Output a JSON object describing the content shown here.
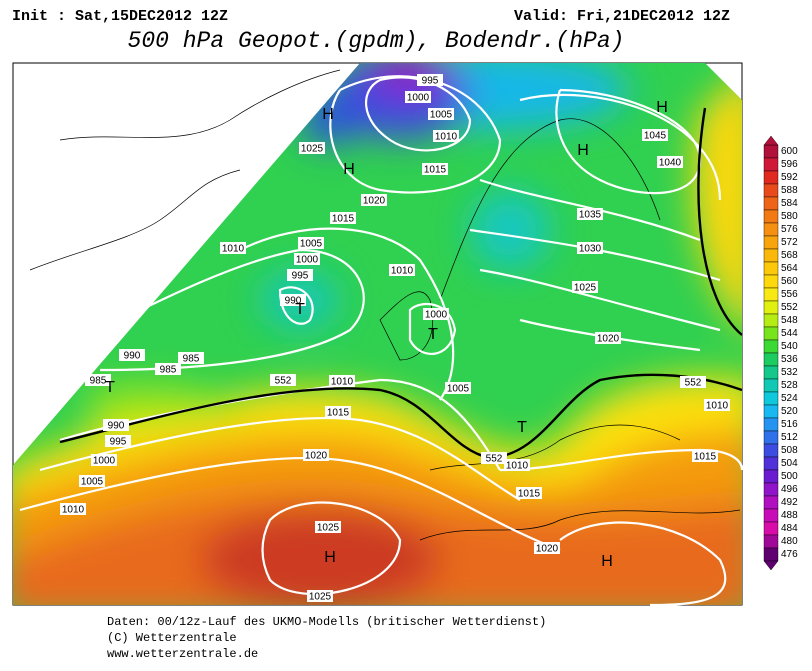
{
  "header": {
    "init": "Init : Sat,15DEC2012 12Z",
    "valid": "Valid: Fri,21DEC2012 12Z",
    "title": "500 hPa Geopot.(gpdm), Bodendr.(hPa)"
  },
  "map": {
    "isobar_labels": [
      "995",
      "1000",
      "1005",
      "1010",
      "1015",
      "1020",
      "1015",
      "1025",
      "1010",
      "1005",
      "1000",
      "995",
      "990",
      "1010",
      "1000",
      "1005",
      "1010",
      "990",
      "985",
      "985",
      "985",
      "990",
      "995",
      "1000",
      "1005",
      "1010",
      "1015",
      "1020",
      "1025",
      "1025",
      "1035",
      "1030",
      "1025",
      "1020",
      "1045",
      "1040",
      "1010",
      "1015",
      "1020",
      "1015",
      "1010",
      "552",
      "552",
      "552"
    ],
    "pressure_centers": [
      "H",
      "H",
      "H",
      "H",
      "T",
      "T",
      "T",
      "T",
      "H",
      "H"
    ]
  },
  "legend": {
    "values": [
      600,
      596,
      592,
      588,
      584,
      580,
      576,
      572,
      568,
      564,
      560,
      556,
      552,
      548,
      544,
      540,
      536,
      532,
      528,
      524,
      520,
      516,
      512,
      508,
      504,
      500,
      496,
      492,
      488,
      484,
      480,
      476
    ],
    "colors": [
      "#b0103a",
      "#d01838",
      "#e02a20",
      "#e84a1c",
      "#ee6418",
      "#f27a14",
      "#f69010",
      "#f8a40c",
      "#fab80a",
      "#fcc80a",
      "#fcd80c",
      "#f8e814",
      "#e0f010",
      "#b4ec14",
      "#78e41c",
      "#3cd834",
      "#1ccc60",
      "#14c88c",
      "#10c8b4",
      "#10c8dc",
      "#18b8f0",
      "#2494f0",
      "#3070e8",
      "#3c4ce0",
      "#5030d8",
      "#6c1cd0",
      "#9014c8",
      "#b010c0",
      "#c80cb8",
      "#d80ca8",
      "#a00898",
      "#600070"
    ]
  },
  "footer": {
    "lines": [
      "Daten: 00/12z-Lauf des UKMO-Modells (britischer Wetterdienst)",
      "(C) Wetterzentrale",
      "www.wetterzentrale.de"
    ]
  }
}
